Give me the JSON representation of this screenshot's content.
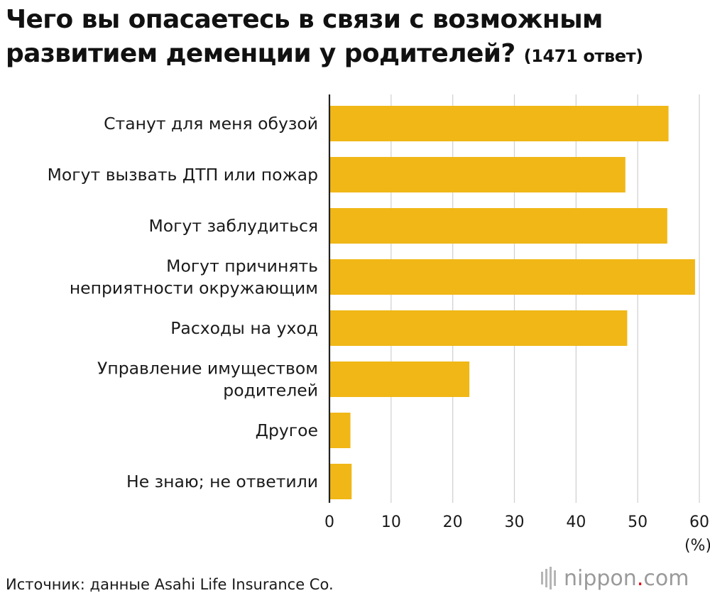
{
  "header": {
    "title": "Чего вы опасаетесь в связи с возможным развитием деменции у родителей?",
    "note": "(1471 ответ)"
  },
  "chart_data": {
    "type": "bar",
    "orientation": "horizontal",
    "title": "Чего вы опасаетесь в связи с возможным развитием деменции у родителей?",
    "subtitle": "(1471 ответ)",
    "categories": [
      [
        "Станут для меня обузой"
      ],
      [
        "Могут вызвать ДТП или пожар"
      ],
      [
        "Могут заблудиться"
      ],
      [
        "Могут причинять",
        "неприятности окружающим"
      ],
      [
        "Расходы на уход"
      ],
      [
        "Управление имуществом",
        "родителей"
      ],
      [
        "Другое"
      ],
      [
        "Не знаю; не ответили"
      ]
    ],
    "values": [
      55.0,
      48.0,
      54.8,
      59.3,
      48.3,
      22.7,
      3.4,
      3.6
    ],
    "xlim": [
      0,
      60
    ],
    "xticks": [
      "0",
      "10",
      "20",
      "30",
      "40",
      "50",
      "60"
    ],
    "xunit": "(%)",
    "grid": "vertical",
    "colors": {
      "bar": "#f0b716",
      "grid": "#cfcfcf",
      "axis": "#222222"
    }
  },
  "footer": {
    "source": "Источник: данные Asahi Life Insurance Co.",
    "brand_name": "nippon",
    "brand_dot": ".",
    "brand_tld": "com",
    "brand_icon": "nippon-stripes-icon"
  }
}
